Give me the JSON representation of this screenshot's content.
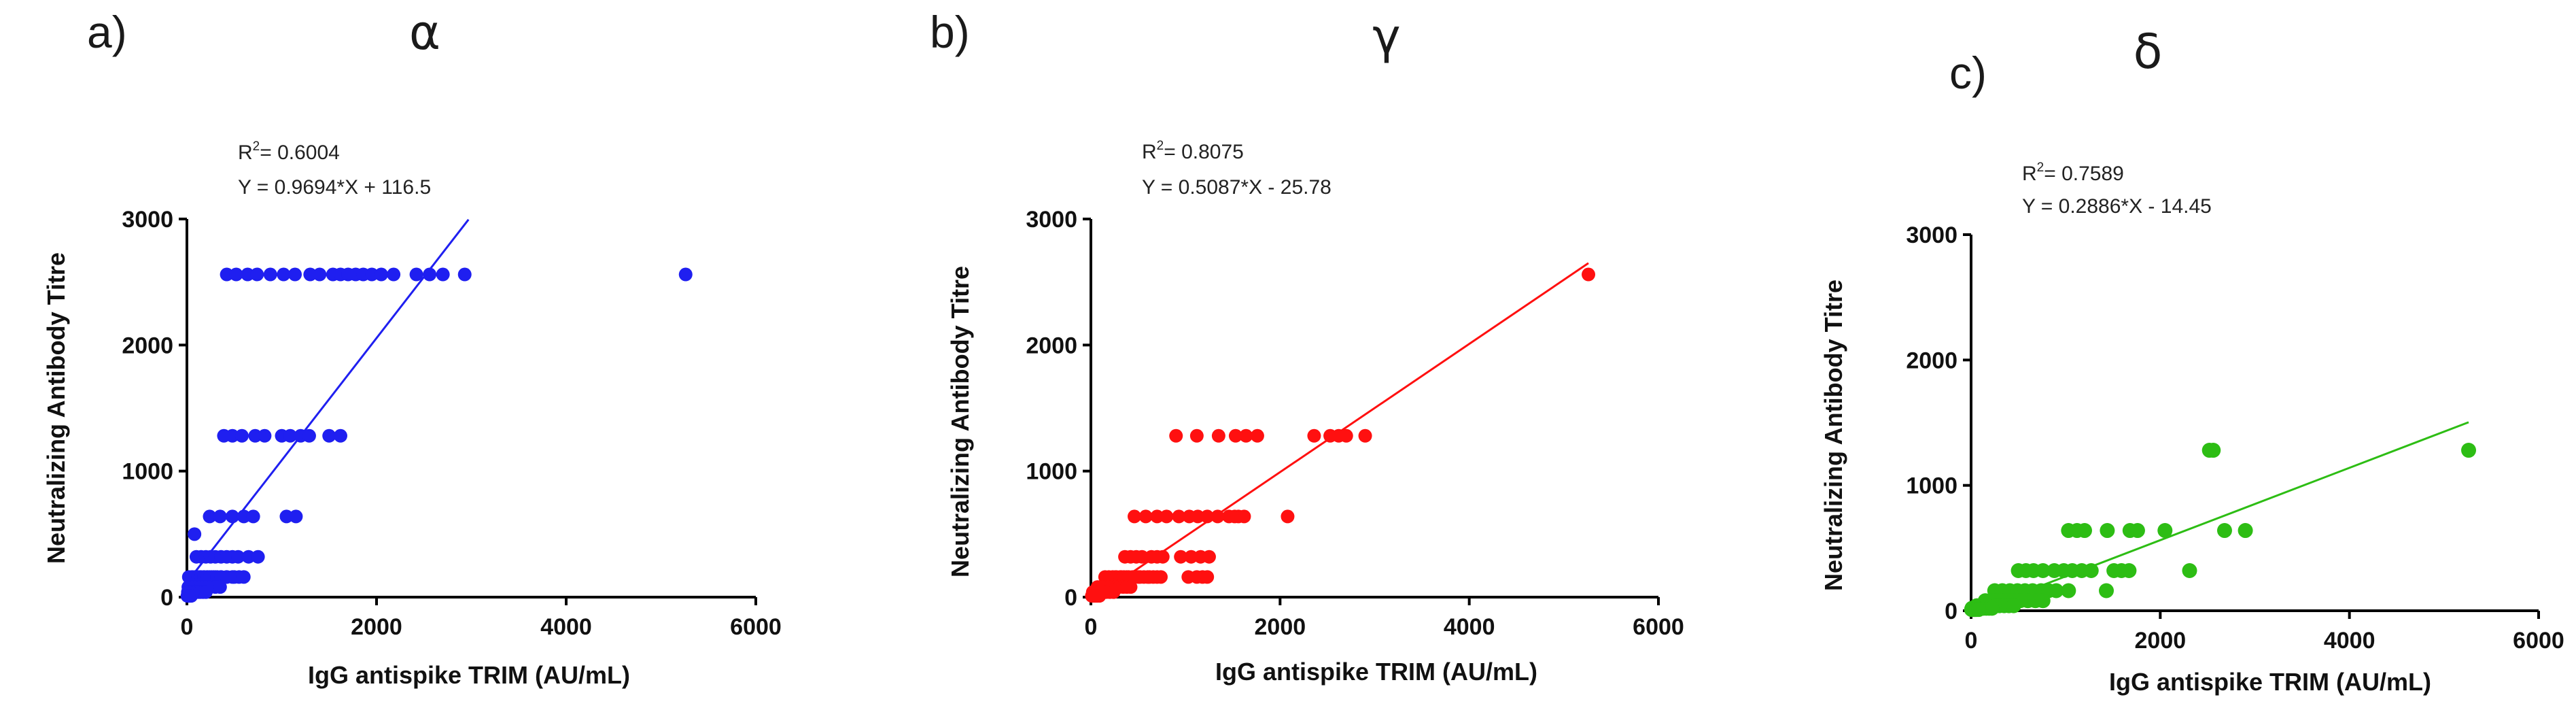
{
  "chart_data": [
    {
      "type": "scatter",
      "panel_label": "a)",
      "title": "α",
      "color": "#1f1ff0",
      "r_squared_label": "R",
      "r_squared_exp": "2",
      "r_squared_value": "= 0.6004",
      "equation": "Y = 0.9694*X + 116.5",
      "xlabel": "IgG antispike TRIM (AU/mL)",
      "ylabel": "Neutralizing Antibody Titre",
      "xlim": [
        0,
        6000
      ],
      "ylim": [
        0,
        3000
      ],
      "xticks": [
        0,
        2000,
        4000,
        6000
      ],
      "yticks": [
        0,
        1000,
        2000,
        3000
      ],
      "fit": {
        "slope": 0.9694,
        "intercept": 116.5,
        "x_range": [
          0,
          2970
        ]
      },
      "x": [
        5260,
        420,
        520,
        640,
        740,
        880,
        1020,
        1140,
        1300,
        1400,
        1540,
        1620,
        1700,
        1780,
        1860,
        1950,
        2050,
        2180,
        2420,
        2560,
        2700,
        2930,
        390,
        480,
        580,
        720,
        820,
        1000,
        1090,
        1200,
        1290,
        1500,
        1620,
        240,
        350,
        480,
        600,
        700,
        1050,
        1150,
        100,
        150,
        200,
        250,
        300,
        360,
        420,
        480,
        540,
        650,
        750,
        80,
        110,
        140,
        180,
        220,
        260,
        300,
        360,
        420,
        500,
        20,
        50,
        60,
        80,
        100,
        120,
        150,
        180,
        210,
        240,
        280,
        320,
        360,
        420,
        480,
        550,
        600,
        15,
        30,
        45,
        60,
        75,
        90,
        110,
        130,
        150,
        180,
        210,
        250,
        300,
        350,
        10,
        20,
        30,
        40,
        55,
        70,
        85,
        100,
        120,
        140,
        170,
        200,
        5,
        15,
        25,
        35,
        45
      ],
      "y": [
        2560,
        2560,
        2560,
        2560,
        2560,
        2560,
        2560,
        2560,
        2560,
        2560,
        2560,
        2560,
        2560,
        2560,
        2560,
        2560,
        2560,
        2560,
        2560,
        2560,
        2560,
        2560,
        1280,
        1280,
        1280,
        1280,
        1280,
        1280,
        1280,
        1280,
        1280,
        1280,
        1280,
        640,
        640,
        640,
        640,
        640,
        640,
        640,
        320,
        320,
        320,
        320,
        320,
        320,
        320,
        320,
        320,
        320,
        320,
        500,
        160,
        160,
        160,
        160,
        160,
        160,
        160,
        160,
        160,
        160,
        160,
        160,
        160,
        160,
        160,
        160,
        160,
        160,
        160,
        160,
        160,
        160,
        160,
        160,
        160,
        160,
        80,
        80,
        80,
        80,
        80,
        80,
        80,
        80,
        80,
        80,
        80,
        80,
        80,
        80,
        40,
        40,
        40,
        40,
        40,
        40,
        40,
        40,
        40,
        40,
        40,
        40,
        10,
        10,
        10,
        10,
        10
      ]
    },
    {
      "type": "scatter",
      "panel_label": "b)",
      "title": "γ",
      "color": "#ff1010",
      "r_squared_label": "R",
      "r_squared_exp": "2",
      "r_squared_value": "= 0.8075",
      "equation": "Y = 0.5087*X - 25.78",
      "xlabel": "IgG antispike TRIM (AU/mL)",
      "ylabel": "Neutralizing Antibody Titre",
      "xlim": [
        0,
        6000
      ],
      "ylim": [
        0,
        3000
      ],
      "xticks": [
        0,
        2000,
        4000,
        6000
      ],
      "yticks": [
        0,
        1000,
        2000,
        3000
      ],
      "fit": {
        "slope": 0.5087,
        "intercept": -25.78,
        "x_range": [
          0,
          5260
        ]
      },
      "x": [
        5260,
        900,
        1120,
        1350,
        1530,
        1640,
        1760,
        2360,
        2530,
        2620,
        2700,
        2900,
        460,
        580,
        700,
        800,
        930,
        1040,
        1130,
        1230,
        1340,
        1460,
        1520,
        1560,
        1620,
        2080,
        360,
        420,
        480,
        540,
        640,
        700,
        760,
        950,
        1060,
        1160,
        1250,
        260,
        320,
        380,
        440,
        520,
        600,
        660,
        740,
        1030,
        1120,
        1180,
        1230,
        150,
        190,
        230,
        270,
        310,
        350,
        400,
        450,
        500,
        560,
        620,
        700,
        70,
        100,
        130,
        160,
        190,
        220,
        260,
        300,
        340,
        380,
        420,
        20,
        40,
        60,
        80,
        100,
        130,
        160,
        200,
        240,
        10,
        25,
        40,
        55,
        70,
        90
      ],
      "y": [
        2560,
        1280,
        1280,
        1280,
        1280,
        1280,
        1280,
        1280,
        1280,
        1280,
        1280,
        1280,
        640,
        640,
        640,
        640,
        640,
        640,
        640,
        640,
        640,
        640,
        640,
        640,
        640,
        640,
        320,
        320,
        320,
        320,
        320,
        320,
        320,
        320,
        320,
        320,
        320,
        160,
        160,
        160,
        160,
        160,
        160,
        160,
        160,
        160,
        160,
        160,
        160,
        160,
        160,
        160,
        160,
        160,
        160,
        160,
        160,
        160,
        160,
        160,
        160,
        80,
        80,
        80,
        80,
        80,
        80,
        80,
        80,
        80,
        80,
        80,
        40,
        40,
        40,
        40,
        40,
        40,
        40,
        40,
        40,
        10,
        10,
        10,
        10,
        10,
        10
      ]
    },
    {
      "type": "scatter",
      "panel_label": "c)",
      "title": "δ",
      "color": "#2dbd14",
      "r_squared_label": "R",
      "r_squared_exp": "2",
      "r_squared_value": "= 0.7589",
      "equation": "Y = 0.2886*X - 14.45",
      "xlabel": "IgG antispike TRIM (AU/mL)",
      "ylabel": "Neutralizing Antibody Titre",
      "xlim": [
        0,
        6000
      ],
      "ylim": [
        0,
        3000
      ],
      "xticks": [
        0,
        2000,
        4000,
        6000
      ],
      "yticks": [
        0,
        1000,
        2000,
        3000
      ],
      "fit": {
        "slope": 0.2886,
        "intercept": -14.45,
        "x_range": [
          0,
          5260
        ]
      },
      "x": [
        2520,
        2560,
        5260,
        1030,
        1120,
        1200,
        1440,
        1680,
        1760,
        2050,
        2680,
        2900,
        500,
        580,
        660,
        760,
        880,
        980,
        1070,
        1170,
        1270,
        1510,
        1590,
        1670,
        2310,
        250,
        330,
        410,
        490,
        570,
        650,
        740,
        820,
        900,
        1030,
        1430,
        150,
        210,
        270,
        330,
        390,
        450,
        520,
        600,
        680,
        760,
        60,
        100,
        140,
        180,
        220,
        260,
        300,
        350,
        400,
        450,
        10,
        30,
        50,
        70,
        90,
        110,
        130,
        160,
        190,
        220,
        5,
        15,
        25,
        35,
        45,
        60,
        80
      ],
      "y": [
        1280,
        1280,
        1280,
        640,
        640,
        640,
        640,
        640,
        640,
        640,
        640,
        640,
        320,
        320,
        320,
        320,
        320,
        320,
        320,
        320,
        320,
        320,
        320,
        320,
        320,
        160,
        160,
        160,
        160,
        160,
        160,
        160,
        160,
        160,
        160,
        160,
        80,
        80,
        80,
        80,
        80,
        80,
        80,
        80,
        80,
        80,
        40,
        40,
        40,
        40,
        40,
        40,
        40,
        40,
        40,
        40,
        20,
        20,
        20,
        20,
        20,
        20,
        20,
        20,
        20,
        20,
        10,
        10,
        10,
        10,
        10,
        10,
        10
      ]
    }
  ]
}
